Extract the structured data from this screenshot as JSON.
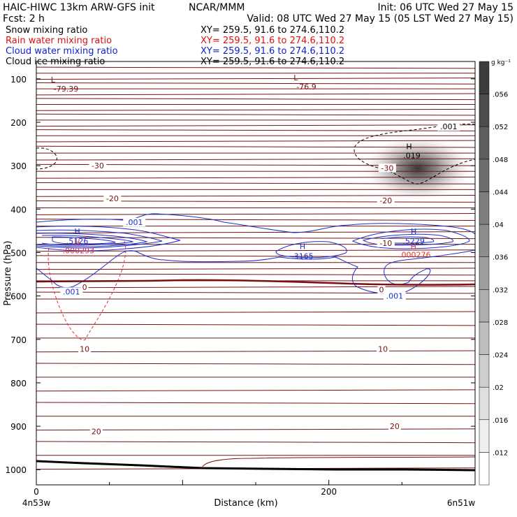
{
  "header": {
    "title_left": "HAIC-HIWC 13km ARW-GFS init",
    "title_center": "NCAR/MMM",
    "init": "Init: 06 UTC Wed 27 May 15",
    "fcst": "Fcst:     2 h",
    "valid": "Valid: 08 UTC Wed 27 May 15 (05 LST Wed 27 May 15)",
    "rows": [
      {
        "label": "Snow mixing ratio",
        "xy": "XY= 259.5, 91.6 to 274.6,110.2",
        "color": "#000000"
      },
      {
        "label": "Rain water mixing ratio",
        "xy": "XY= 259.5, 91.6 to 274.6,110.2",
        "color": "#dd1111"
      },
      {
        "label": "Cloud water mixing ratio",
        "xy": "XY= 259.5, 91.6 to 274.6,110.2",
        "color": "#1122cc"
      },
      {
        "label": "Cloud ice mixing ratio",
        "xy": "XY= 259.5, 91.6 to 274.6,110.2",
        "color": "#000000"
      }
    ]
  },
  "colors": {
    "temperature": "#7a1010",
    "cloud_water": "#1a2fd0",
    "rain": "#e03030",
    "ice": "#000000"
  },
  "colorbar": {
    "unit": "g kg⁻¹",
    "labels": [
      ".012",
      ".016",
      ".02",
      ".024",
      ".028",
      ".032",
      ".036",
      ".04",
      ".044",
      ".048",
      ".052",
      ".056"
    ]
  },
  "chart_data": {
    "type": "contour",
    "xlabel": "Distance (km)",
    "ylabel": "Pressure (hPa)",
    "x_ticks": [
      "0",
      "200"
    ],
    "x_endpoints": [
      "4n53w",
      "6n51w"
    ],
    "y_ticks": [
      "100",
      "200",
      "300",
      "400",
      "500",
      "600",
      "700",
      "800",
      "900",
      "1000"
    ],
    "xlim": [
      0,
      300
    ],
    "ylim": [
      1035,
      60
    ],
    "isotherm_labels": [
      {
        "text": "-30",
        "x": 42,
        "p": 300
      },
      {
        "text": "-30",
        "x": 240,
        "p": 305
      },
      {
        "text": "-20",
        "x": 52,
        "p": 375
      },
      {
        "text": "-20",
        "x": 239,
        "p": 380
      },
      {
        "text": "-10",
        "x": 239,
        "p": 478
      },
      {
        "text": "0",
        "x": 33,
        "p": 580
      },
      {
        "text": "0",
        "x": 236,
        "p": 585
      },
      {
        "text": "10",
        "x": 33,
        "p": 722
      },
      {
        "text": "10",
        "x": 237,
        "p": 722
      },
      {
        "text": "20",
        "x": 41,
        "p": 912
      },
      {
        "text": "20",
        "x": 245,
        "p": 900
      }
    ],
    "temp_lows": [
      {
        "mark": "L",
        "value": "-79.39",
        "x": 8,
        "p": 115
      },
      {
        "mark": "L",
        "value": "-76.9",
        "x": 174,
        "p": 110
      }
    ],
    "cloud_water_labels": [
      {
        "text": ".001",
        "x": 67,
        "p": 430
      },
      {
        "text": ".001",
        "x": 24,
        "p": 590
      },
      {
        "text": ".001",
        "x": 245,
        "p": 600
      }
    ],
    "cloud_water_maxima": [
      {
        "mark": "H",
        "value": ".5126",
        "x": 28,
        "p": 470
      },
      {
        "mark": "H",
        "value": ".3165",
        "x": 182,
        "p": 505
      },
      {
        "mark": "H",
        "value": ".5229",
        "x": 258,
        "p": 470
      }
    ],
    "rain_maxima": [
      {
        "mark": "H",
        "value": ".000293",
        "x": 25,
        "p": 495
      },
      {
        "mark": "H",
        "value": ".000276",
        "x": 255,
        "p": 505
      }
    ],
    "ice_labels": [
      {
        "text": ".001",
        "x": 282,
        "p": 210
      }
    ],
    "ice_maxima": [
      {
        "mark": "H",
        "value": ".019",
        "x": 252,
        "p": 275
      }
    ],
    "snow_field": {
      "x": 265,
      "p": 300,
      "max": 0.056
    }
  }
}
